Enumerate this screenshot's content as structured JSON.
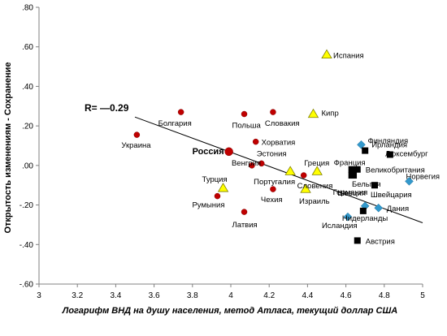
{
  "chart_data": {
    "type": "scatter",
    "xlabel": "Логарифм ВНД на душу населения, метод Атласа, текущий доллар США",
    "ylabel": "Открытость изменениям - Сохранение",
    "xlim": [
      3,
      5
    ],
    "ylim": [
      -0.6,
      0.8
    ],
    "xticks": [
      "3",
      "3.2",
      "3.4",
      "3.6",
      "3.8",
      "4",
      "4.2",
      "4.4",
      "4.6",
      "4.8",
      "5"
    ],
    "yticks": [
      ".80",
      ".60",
      ".40",
      ".20",
      ".00",
      "-.20",
      "-.40",
      "-.60"
    ],
    "grid": false,
    "annotation": "R= —0.29",
    "trendline": {
      "x1": 3.5,
      "y1": 0.245,
      "x2": 5.0,
      "y2": -0.29
    },
    "marker_colors": {
      "circle": "#c00000",
      "triangle": "#ffff00",
      "square": "#000000",
      "diamond": "#3399cc"
    },
    "points": [
      {
        "label": "Испания",
        "x": 4.5,
        "y": 0.56,
        "shape": "triangle"
      },
      {
        "label": "Кипр",
        "x": 4.43,
        "y": 0.26,
        "shape": "triangle"
      },
      {
        "label": "Болгария",
        "x": 3.74,
        "y": 0.27,
        "shape": "circle"
      },
      {
        "label": "Польша",
        "x": 4.07,
        "y": 0.26,
        "shape": "circle"
      },
      {
        "label": "Словакия",
        "x": 4.22,
        "y": 0.27,
        "shape": "circle"
      },
      {
        "label": "Украина",
        "x": 3.51,
        "y": 0.155,
        "shape": "circle"
      },
      {
        "label": "Хорватия",
        "x": 4.13,
        "y": 0.12,
        "shape": "circle"
      },
      {
        "label": "Россия",
        "x": 3.99,
        "y": 0.07,
        "shape": "circle",
        "highlight": true
      },
      {
        "label": "Эстония",
        "x": 4.16,
        "y": 0.01,
        "shape": "circle"
      },
      {
        "label": "Венгрия",
        "x": 4.11,
        "y": 0.0,
        "shape": "circle"
      },
      {
        "label": "Португалия",
        "x": 4.31,
        "y": -0.03,
        "shape": "triangle"
      },
      {
        "label": "Словения",
        "x": 4.38,
        "y": -0.05,
        "shape": "circle"
      },
      {
        "label": "Греция",
        "x": 4.45,
        "y": -0.03,
        "shape": "triangle"
      },
      {
        "label": "Турция",
        "x": 3.96,
        "y": -0.115,
        "shape": "triangle"
      },
      {
        "label": "Чехия",
        "x": 4.22,
        "y": -0.12,
        "shape": "circle"
      },
      {
        "label": "Израиль",
        "x": 4.39,
        "y": -0.12,
        "shape": "triangle"
      },
      {
        "label": "Румыния",
        "x": 3.93,
        "y": -0.155,
        "shape": "circle"
      },
      {
        "label": "Латвия",
        "x": 4.07,
        "y": -0.235,
        "shape": "circle"
      },
      {
        "label": "Финляндия",
        "x": 4.68,
        "y": 0.105,
        "shape": "diamond"
      },
      {
        "label": "Ирландия",
        "x": 4.7,
        "y": 0.075,
        "shape": "square"
      },
      {
        "label": "Люксембург",
        "x": 4.83,
        "y": 0.055,
        "shape": "square"
      },
      {
        "label": "Франция",
        "x": 4.63,
        "y": -0.02,
        "shape": "square"
      },
      {
        "label": "Великобритания",
        "x": 4.66,
        "y": -0.02,
        "shape": "square"
      },
      {
        "label": "Бельгия",
        "x": 4.64,
        "y": -0.05,
        "shape": "square"
      },
      {
        "label": "Германия",
        "x": 4.63,
        "y": -0.05,
        "shape": "square"
      },
      {
        "label": "Норвегия",
        "x": 4.93,
        "y": -0.08,
        "shape": "diamond"
      },
      {
        "label": "Швейцария",
        "x": 4.75,
        "y": -0.1,
        "shape": "square"
      },
      {
        "label": "Швеция",
        "x": 4.7,
        "y": -0.205,
        "shape": "diamond"
      },
      {
        "label": "Дания",
        "x": 4.77,
        "y": -0.215,
        "shape": "diamond"
      },
      {
        "label": "Нидерланды",
        "x": 4.69,
        "y": -0.23,
        "shape": "square"
      },
      {
        "label": "Исландия",
        "x": 4.61,
        "y": -0.26,
        "shape": "diamond"
      },
      {
        "label": "Австрия",
        "x": 4.66,
        "y": -0.38,
        "shape": "square"
      }
    ]
  }
}
